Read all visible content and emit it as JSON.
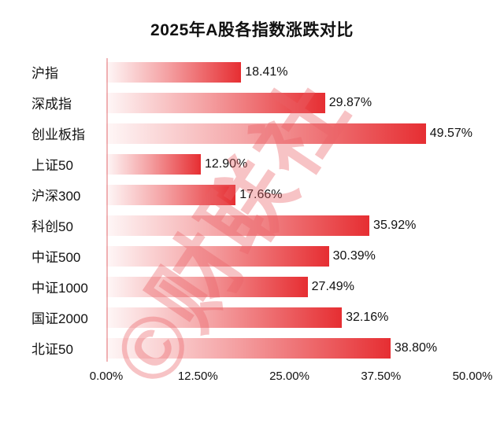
{
  "title": "2025年A股各指数涨跌对比",
  "watermark": "©财联社",
  "colors": {
    "bar_gradient_start": "#fdf2f2",
    "bar_gradient_end": "#e62e32",
    "axis_line": "#f0b6b8",
    "text": "#111111",
    "watermark": "#e96167"
  },
  "chart_data": {
    "type": "bar",
    "orientation": "horizontal",
    "title": "2025年A股各指数涨跌对比",
    "categories": [
      "沪指",
      "深成指",
      "创业板指",
      "上证50",
      "沪深300",
      "科创50",
      "中证500",
      "中证1000",
      "国证2000",
      "北证50"
    ],
    "values": [
      18.41,
      29.87,
      49.57,
      12.9,
      17.66,
      35.92,
      30.39,
      27.49,
      32.16,
      38.8
    ],
    "value_labels": [
      "18.41%",
      "29.87%",
      "49.57%",
      "12.90%",
      "17.66%",
      "35.92%",
      "30.39%",
      "27.49%",
      "32.16%",
      "38.80%"
    ],
    "x_ticks": [
      "0.00%",
      "12.50%",
      "25.00%",
      "37.50%",
      "50.00%"
    ],
    "x_tick_values": [
      0,
      12.5,
      25,
      37.5,
      50
    ],
    "xlim": [
      0,
      50
    ],
    "xlabel": "",
    "ylabel": "",
    "grid": false,
    "legend": false
  }
}
